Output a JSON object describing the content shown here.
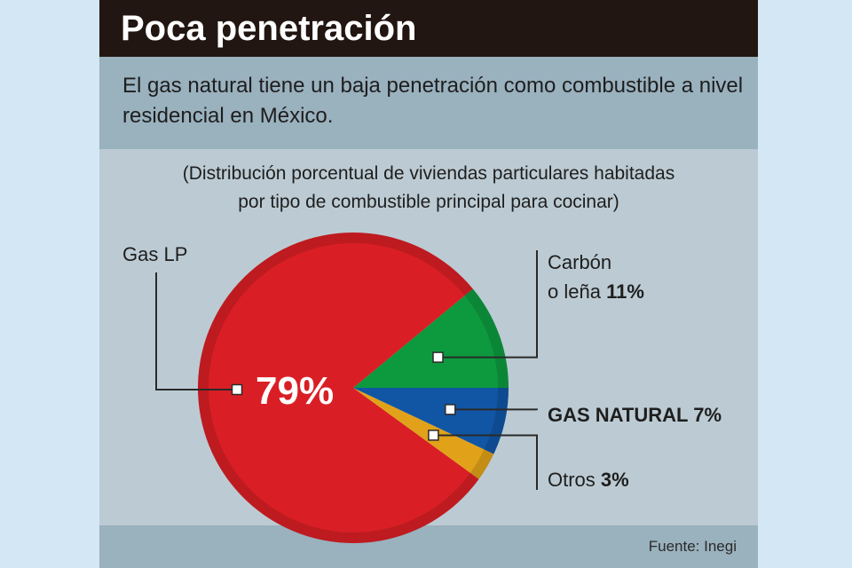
{
  "header": {
    "title": "Poca penetración"
  },
  "subtitle": "El gas natural tiene un baja penetración como combustible a nivel residencial en México.",
  "description": {
    "line1": "(Distribución porcentual de viviendas particulares habitadas",
    "line2": "por tipo de combustible principal para cocinar)"
  },
  "source": "Fuente: Inegi",
  "colors": {
    "gas_lp": "#d91f25",
    "carbon": "#0d9a3e",
    "gas_natural": "#1156a5",
    "otros": "#e1a21a",
    "rim_shade": "#000000"
  },
  "chart_data": {
    "type": "pie",
    "title": "",
    "start_direction": "right",
    "direction": "counterclockwise",
    "slices": [
      {
        "key": "carbon",
        "label_line1": "Carbón",
        "label_line2": "o leña",
        "value": 11,
        "value_label": "11%",
        "color": "#0d9a3e"
      },
      {
        "key": "gas_lp",
        "label_line1": "Gas LP",
        "value": 79,
        "value_label": "79%",
        "color": "#d91f25"
      },
      {
        "key": "otros",
        "label_line1": "Otros",
        "value": 3,
        "value_label": "3%",
        "color": "#e1a21a"
      },
      {
        "key": "gas_natural",
        "label_line1": "GAS NATURAL",
        "value": 7,
        "value_label": "7%",
        "color": "#1156a5"
      }
    ]
  }
}
